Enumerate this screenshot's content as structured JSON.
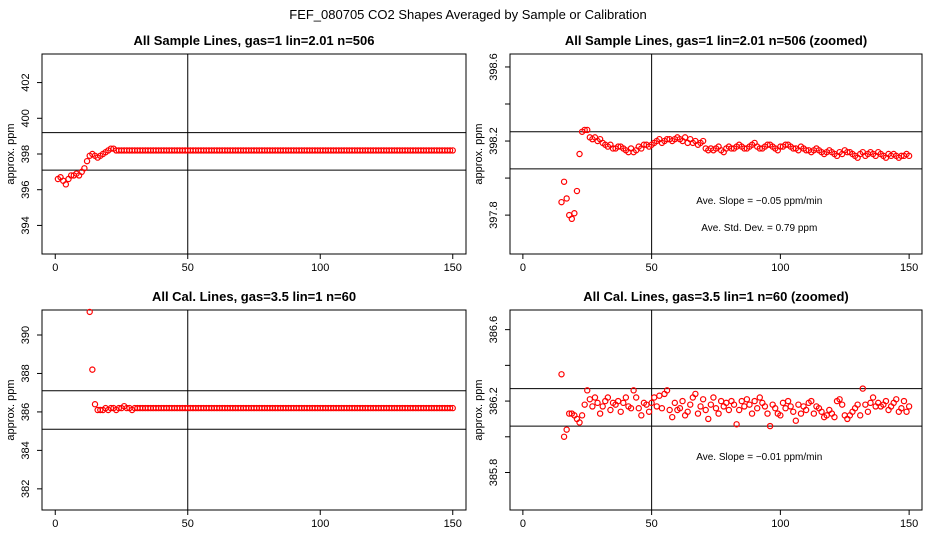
{
  "figure_title": "FEF_080705  CO2 Shapes Averaged by Sample or Calibration",
  "chart_data": [
    {
      "type": "scatter",
      "title": "All Sample Lines, gas=1 lin=2.01 n=506",
      "xlabel": "",
      "ylabel": "approx. ppm",
      "xlim": [
        -5,
        155
      ],
      "ylim": [
        392.4,
        403.6
      ],
      "xticks": [
        0,
        50,
        100,
        150
      ],
      "yticks": [
        394,
        396,
        398,
        400,
        402
      ],
      "hlines": [
        399.2,
        397.1
      ],
      "vline": 50,
      "point_color": "#ff0000",
      "x": [
        1,
        2,
        3,
        4,
        5,
        6,
        7,
        8,
        9,
        10,
        11,
        12,
        13,
        14,
        15,
        16,
        17,
        18,
        19,
        20,
        21,
        22,
        23,
        24,
        25,
        26,
        27,
        28,
        29,
        30,
        31,
        32,
        33,
        34,
        35,
        36,
        37,
        38,
        39,
        40,
        41,
        42,
        43,
        44,
        45,
        46,
        47,
        48,
        49,
        50,
        51,
        52,
        53,
        54,
        55,
        56,
        57,
        58,
        59,
        60,
        61,
        62,
        63,
        64,
        65,
        66,
        67,
        68,
        69,
        70,
        71,
        72,
        73,
        74,
        75,
        76,
        77,
        78,
        79,
        80,
        81,
        82,
        83,
        84,
        85,
        86,
        87,
        88,
        89,
        90,
        91,
        92,
        93,
        94,
        95,
        96,
        97,
        98,
        99,
        100,
        101,
        102,
        103,
        104,
        105,
        106,
        107,
        108,
        109,
        110,
        111,
        112,
        113,
        114,
        115,
        116,
        117,
        118,
        119,
        120,
        121,
        122,
        123,
        124,
        125,
        126,
        127,
        128,
        129,
        130,
        131,
        132,
        133,
        134,
        135,
        136,
        137,
        138,
        139,
        140,
        141,
        142,
        143,
        144,
        145,
        146,
        147,
        148,
        149,
        150
      ],
      "y": [
        396.6,
        396.7,
        396.5,
        396.3,
        396.6,
        396.8,
        396.8,
        396.9,
        396.8,
        397.0,
        397.2,
        397.6,
        397.9,
        398.0,
        397.9,
        397.8,
        397.9,
        398.0,
        398.1,
        398.2,
        398.3,
        398.3,
        398.2,
        398.2,
        398.2,
        398.2,
        398.2,
        398.2,
        398.2,
        398.2,
        398.2,
        398.2,
        398.2,
        398.2,
        398.2,
        398.2,
        398.2,
        398.2,
        398.2,
        398.2,
        398.2,
        398.2,
        398.2,
        398.2,
        398.2,
        398.2,
        398.2,
        398.2,
        398.2,
        398.2,
        398.2,
        398.2,
        398.2,
        398.2,
        398.2,
        398.2,
        398.2,
        398.2,
        398.2,
        398.2,
        398.2,
        398.2,
        398.2,
        398.2,
        398.2,
        398.2,
        398.2,
        398.2,
        398.2,
        398.2,
        398.2,
        398.2,
        398.2,
        398.2,
        398.2,
        398.2,
        398.2,
        398.2,
        398.2,
        398.2,
        398.2,
        398.2,
        398.2,
        398.2,
        398.2,
        398.2,
        398.2,
        398.2,
        398.2,
        398.2,
        398.2,
        398.2,
        398.2,
        398.2,
        398.2,
        398.2,
        398.2,
        398.2,
        398.2,
        398.2,
        398.2,
        398.2,
        398.2,
        398.2,
        398.2,
        398.2,
        398.2,
        398.2,
        398.2,
        398.2,
        398.2,
        398.2,
        398.2,
        398.2,
        398.2,
        398.2,
        398.2,
        398.2,
        398.2,
        398.2,
        398.2,
        398.2,
        398.2,
        398.2,
        398.2,
        398.2,
        398.2,
        398.2,
        398.2,
        398.2,
        398.2,
        398.2,
        398.2,
        398.2,
        398.2,
        398.2,
        398.2,
        398.2,
        398.2,
        398.2,
        398.2,
        398.2,
        398.2,
        398.2,
        398.2,
        398.2,
        398.2,
        398.2,
        398.2,
        398.2
      ],
      "annotations": []
    },
    {
      "type": "scatter",
      "title": "All Sample Lines, gas=1 lin=2.01 n=506 (zoomed)",
      "xlabel": "",
      "ylabel": "approx. ppm",
      "xlim": [
        -5,
        155
      ],
      "ylim": [
        397.59,
        398.67
      ],
      "xticks": [
        0,
        50,
        100,
        150
      ],
      "yticks": [
        397.8,
        398.2,
        398.6
      ],
      "hlines": [
        398.25,
        398.05
      ],
      "vline": 50,
      "point_color": "#ff0000",
      "x": [
        15,
        16,
        17,
        18,
        19,
        20,
        21,
        22,
        23,
        24,
        25,
        26,
        27,
        28,
        29,
        30,
        31,
        32,
        33,
        34,
        35,
        36,
        37,
        38,
        39,
        40,
        41,
        42,
        43,
        44,
        45,
        46,
        47,
        48,
        49,
        50,
        51,
        52,
        53,
        54,
        55,
        56,
        57,
        58,
        59,
        60,
        61,
        62,
        63,
        64,
        65,
        66,
        67,
        68,
        69,
        70,
        71,
        72,
        73,
        74,
        75,
        76,
        77,
        78,
        79,
        80,
        81,
        82,
        83,
        84,
        85,
        86,
        87,
        88,
        89,
        90,
        91,
        92,
        93,
        94,
        95,
        96,
        97,
        98,
        99,
        100,
        101,
        102,
        103,
        104,
        105,
        106,
        107,
        108,
        109,
        110,
        111,
        112,
        113,
        114,
        115,
        116,
        117,
        118,
        119,
        120,
        121,
        122,
        123,
        124,
        125,
        126,
        127,
        128,
        129,
        130,
        131,
        132,
        133,
        134,
        135,
        136,
        137,
        138,
        139,
        140,
        141,
        142,
        143,
        144,
        145,
        146,
        147,
        148,
        149,
        150
      ],
      "y": [
        397.87,
        397.98,
        397.89,
        397.8,
        397.78,
        397.81,
        397.93,
        398.13,
        398.25,
        398.26,
        398.26,
        398.22,
        398.21,
        398.22,
        398.2,
        398.21,
        398.19,
        398.18,
        398.17,
        398.18,
        398.16,
        398.16,
        398.17,
        398.17,
        398.16,
        398.15,
        398.14,
        398.16,
        398.14,
        398.15,
        398.17,
        398.16,
        398.18,
        398.18,
        398.17,
        398.18,
        398.19,
        398.2,
        398.21,
        398.19,
        398.2,
        398.21,
        398.21,
        398.2,
        398.21,
        398.22,
        398.21,
        398.2,
        398.22,
        398.19,
        398.21,
        398.19,
        398.2,
        398.18,
        398.19,
        398.2,
        398.16,
        398.15,
        398.16,
        398.15,
        398.16,
        398.17,
        398.15,
        398.14,
        398.16,
        398.17,
        398.16,
        398.16,
        398.17,
        398.18,
        398.17,
        398.16,
        398.16,
        398.17,
        398.18,
        398.19,
        398.17,
        398.16,
        398.16,
        398.17,
        398.18,
        398.18,
        398.17,
        398.16,
        398.15,
        398.17,
        398.17,
        398.18,
        398.18,
        398.17,
        398.16,
        398.16,
        398.15,
        398.17,
        398.16,
        398.15,
        398.15,
        398.14,
        398.15,
        398.16,
        398.15,
        398.14,
        398.13,
        398.14,
        398.15,
        398.14,
        398.13,
        398.12,
        398.14,
        398.13,
        398.15,
        398.14,
        398.14,
        398.13,
        398.12,
        398.11,
        398.13,
        398.14,
        398.12,
        398.13,
        398.14,
        398.13,
        398.12,
        398.14,
        398.13,
        398.12,
        398.11,
        398.13,
        398.12,
        398.13,
        398.12,
        398.11,
        398.12,
        398.12,
        398.13,
        398.12
      ],
      "annotations": [
        "Ave. Slope = −0.05  ppm/min",
        "Ave. Std. Dev. = 0.79  ppm"
      ]
    },
    {
      "type": "scatter",
      "title": "All Cal. Lines, gas=3.5 lin=1 n=60",
      "xlabel": "",
      "ylabel": "approx. ppm",
      "xlim": [
        -5,
        155
      ],
      "ylim": [
        380.9,
        391.3
      ],
      "xticks": [
        0,
        50,
        100,
        150
      ],
      "yticks": [
        382,
        384,
        386,
        388,
        390
      ],
      "hlines": [
        387.1,
        385.1
      ],
      "vline": 50,
      "point_color": "#ff0000",
      "x": [
        13,
        14,
        15,
        16,
        17,
        18,
        19,
        20,
        21,
        22,
        23,
        24,
        25,
        26,
        27,
        28,
        29,
        30,
        31,
        32,
        33,
        34,
        35,
        36,
        37,
        38,
        39,
        40,
        41,
        42,
        43,
        44,
        45,
        46,
        47,
        48,
        49,
        50,
        51,
        52,
        53,
        54,
        55,
        56,
        57,
        58,
        59,
        60,
        61,
        62,
        63,
        64,
        65,
        66,
        67,
        68,
        69,
        70,
        71,
        72,
        73,
        74,
        75,
        76,
        77,
        78,
        79,
        80,
        81,
        82,
        83,
        84,
        85,
        86,
        87,
        88,
        89,
        90,
        91,
        92,
        93,
        94,
        95,
        96,
        97,
        98,
        99,
        100,
        101,
        102,
        103,
        104,
        105,
        106,
        107,
        108,
        109,
        110,
        111,
        112,
        113,
        114,
        115,
        116,
        117,
        118,
        119,
        120,
        121,
        122,
        123,
        124,
        125,
        126,
        127,
        128,
        129,
        130,
        131,
        132,
        133,
        134,
        135,
        136,
        137,
        138,
        139,
        140,
        141,
        142,
        143,
        144,
        145,
        146,
        147,
        148,
        149,
        150
      ],
      "y": [
        391.2,
        388.2,
        386.4,
        386.1,
        386.1,
        386.1,
        386.2,
        386.1,
        386.2,
        386.2,
        386.1,
        386.2,
        386.2,
        386.3,
        386.2,
        386.2,
        386.1,
        386.2,
        386.2,
        386.2,
        386.2,
        386.2,
        386.2,
        386.2,
        386.2,
        386.2,
        386.2,
        386.2,
        386.2,
        386.2,
        386.2,
        386.2,
        386.2,
        386.2,
        386.2,
        386.2,
        386.2,
        386.2,
        386.2,
        386.2,
        386.2,
        386.2,
        386.2,
        386.2,
        386.2,
        386.2,
        386.2,
        386.2,
        386.2,
        386.2,
        386.2,
        386.2,
        386.2,
        386.2,
        386.2,
        386.2,
        386.2,
        386.2,
        386.2,
        386.2,
        386.2,
        386.2,
        386.2,
        386.2,
        386.2,
        386.2,
        386.2,
        386.2,
        386.2,
        386.2,
        386.2,
        386.2,
        386.2,
        386.2,
        386.2,
        386.2,
        386.2,
        386.2,
        386.2,
        386.2,
        386.2,
        386.2,
        386.2,
        386.2,
        386.2,
        386.2,
        386.2,
        386.2,
        386.2,
        386.2,
        386.2,
        386.2,
        386.2,
        386.2,
        386.2,
        386.2,
        386.2,
        386.2,
        386.2,
        386.2,
        386.2,
        386.2,
        386.2,
        386.2,
        386.2,
        386.2,
        386.2,
        386.2,
        386.2,
        386.2,
        386.2,
        386.2,
        386.2,
        386.2,
        386.2,
        386.2,
        386.2,
        386.2,
        386.2,
        386.2,
        386.2,
        386.2,
        386.2,
        386.2,
        386.2,
        386.2,
        386.2,
        386.2,
        386.2,
        386.2,
        386.2,
        386.2,
        386.2,
        386.2,
        386.2,
        386.2,
        386.2,
        386.2
      ],
      "annotations": []
    },
    {
      "type": "scatter",
      "title": "All Cal. Lines, gas=3.5 lin=1 n=60 (zoomed)",
      "xlabel": "",
      "ylabel": "approx. ppm",
      "xlim": [
        -5,
        155
      ],
      "ylim": [
        385.59,
        386.71
      ],
      "xticks": [
        0,
        50,
        100,
        150
      ],
      "yticks": [
        385.8,
        386.2,
        386.6
      ],
      "hlines": [
        386.27,
        386.06
      ],
      "vline": 50,
      "point_color": "#ff0000",
      "x": [
        15,
        16,
        17,
        18,
        19,
        20,
        21,
        22,
        23,
        24,
        25,
        26,
        27,
        28,
        29,
        30,
        31,
        32,
        33,
        34,
        35,
        36,
        37,
        38,
        39,
        40,
        41,
        42,
        43,
        44,
        45,
        46,
        47,
        48,
        49,
        50,
        51,
        52,
        53,
        54,
        55,
        56,
        57,
        58,
        59,
        60,
        61,
        62,
        63,
        64,
        65,
        66,
        67,
        68,
        69,
        70,
        71,
        72,
        73,
        74,
        75,
        76,
        77,
        78,
        79,
        80,
        81,
        82,
        83,
        84,
        85,
        86,
        87,
        88,
        89,
        90,
        91,
        92,
        93,
        94,
        95,
        96,
        97,
        98,
        99,
        100,
        101,
        102,
        103,
        104,
        105,
        106,
        107,
        108,
        109,
        110,
        111,
        112,
        113,
        114,
        115,
        116,
        117,
        118,
        119,
        120,
        121,
        122,
        123,
        124,
        125,
        126,
        127,
        128,
        129,
        130,
        131,
        132,
        133,
        134,
        135,
        136,
        137,
        138,
        139,
        140,
        141,
        142,
        143,
        144,
        145,
        146,
        147,
        148,
        149,
        150
      ],
      "y": [
        386.35,
        386.0,
        386.04,
        386.13,
        386.13,
        386.12,
        386.1,
        386.08,
        386.12,
        386.18,
        386.26,
        386.21,
        386.17,
        386.22,
        386.19,
        386.13,
        386.17,
        386.2,
        386.22,
        386.15,
        386.19,
        386.18,
        386.2,
        386.14,
        386.19,
        386.22,
        386.17,
        386.16,
        386.26,
        386.22,
        386.16,
        386.12,
        386.19,
        386.18,
        386.14,
        386.19,
        386.22,
        386.17,
        386.23,
        386.16,
        386.24,
        386.26,
        386.15,
        386.11,
        386.19,
        386.15,
        386.16,
        386.2,
        386.12,
        386.14,
        386.18,
        386.22,
        386.24,
        386.13,
        386.17,
        386.21,
        386.15,
        386.1,
        386.18,
        386.22,
        386.16,
        386.13,
        386.2,
        386.17,
        386.19,
        386.15,
        386.2,
        386.18,
        386.07,
        386.15,
        386.2,
        386.17,
        386.21,
        386.18,
        386.13,
        386.2,
        386.16,
        386.22,
        386.19,
        386.17,
        386.13,
        386.06,
        386.18,
        386.16,
        386.13,
        386.12,
        386.19,
        386.16,
        386.2,
        386.17,
        386.14,
        386.09,
        386.18,
        386.13,
        386.17,
        386.15,
        386.19,
        386.2,
        386.13,
        386.17,
        386.16,
        386.14,
        386.11,
        386.12,
        386.15,
        386.13,
        386.11,
        386.2,
        386.21,
        386.18,
        386.12,
        386.1,
        386.12,
        386.14,
        386.16,
        386.18,
        386.12,
        386.27,
        386.18,
        386.14,
        386.19,
        386.22,
        386.17,
        386.19,
        386.17,
        386.18,
        386.2,
        386.15,
        386.17,
        386.19,
        386.21,
        386.14,
        386.16,
        386.2,
        386.14,
        386.17
      ],
      "annotations": [
        "Ave. Slope = −0.01  ppm/min"
      ]
    }
  ]
}
